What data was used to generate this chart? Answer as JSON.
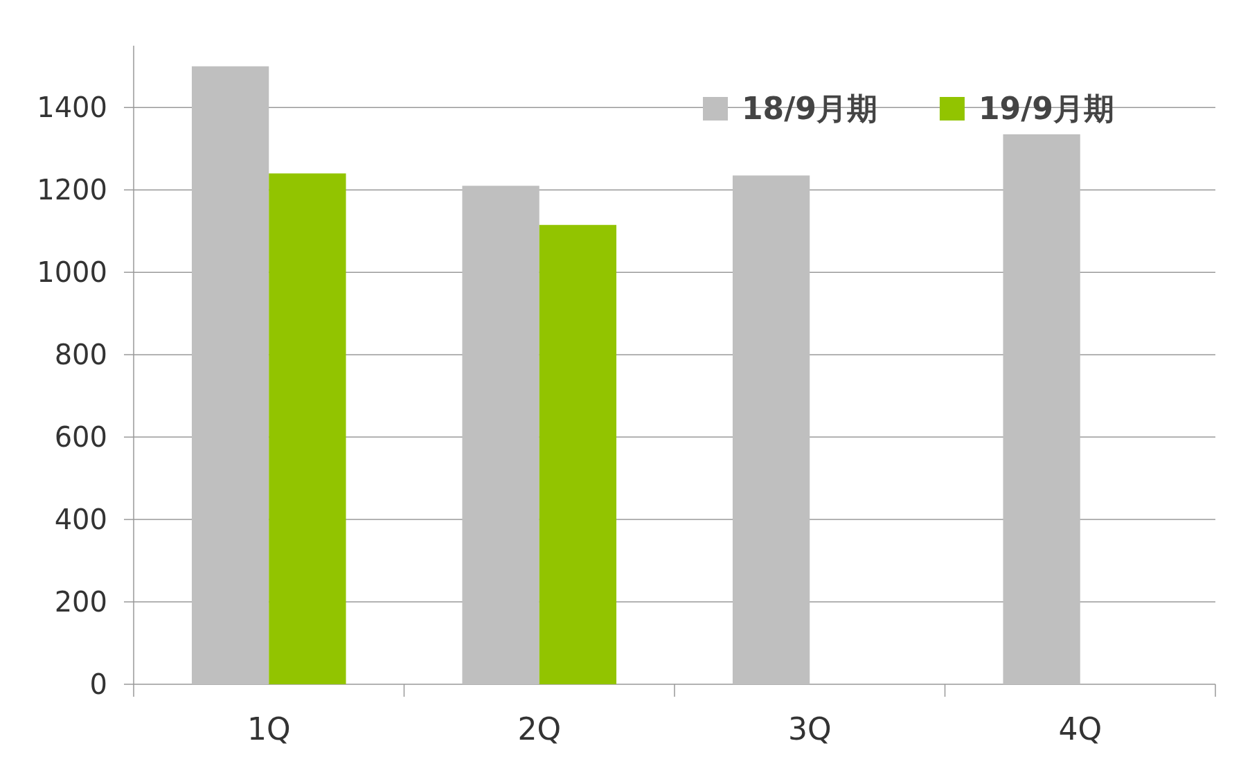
{
  "chart_data": {
    "type": "bar",
    "categories": [
      "1Q",
      "2Q",
      "3Q",
      "4Q"
    ],
    "series": [
      {
        "name": "18/9月期",
        "color": "#bfbfbf",
        "values": [
          1500,
          1210,
          1235,
          1335
        ]
      },
      {
        "name": "19/9月期",
        "color": "#92c400",
        "values": [
          1240,
          1115,
          null,
          null
        ]
      }
    ],
    "ylim": [
      0,
      1550
    ],
    "yticks": [
      0,
      200,
      400,
      600,
      800,
      1000,
      1200,
      1400
    ],
    "grid": "y",
    "legend": "top right"
  }
}
